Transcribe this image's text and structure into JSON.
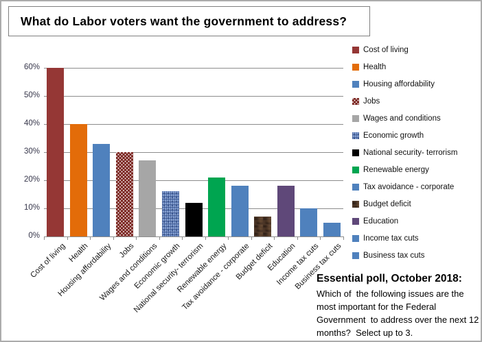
{
  "title": "What do Labor voters want the government to address?",
  "chart_data": {
    "type": "bar",
    "title": "What do Labor voters want the government to address?",
    "unit": "%",
    "categories": [
      "Cost of living",
      "Health",
      "Housing affordability",
      "Jobs",
      "Wages and conditions",
      "Economic growth",
      "National security- terrorism",
      "Renewable energy",
      "Tax avoidance - corporate",
      "Budget deficit",
      "Education",
      "Income tax cuts",
      "Business tax cuts"
    ],
    "values": [
      60,
      40,
      33,
      30,
      27,
      16,
      12,
      21,
      18,
      7,
      18,
      10,
      5
    ],
    "series_styles": [
      {
        "color": "#953735",
        "pattern": "solid"
      },
      {
        "color": "#E36C09",
        "pattern": "solid"
      },
      {
        "color": "#4F81BD",
        "pattern": "solid"
      },
      {
        "color": "#7E2B26",
        "pattern": "dots"
      },
      {
        "color": "#A6A6A6",
        "pattern": "solid"
      },
      {
        "color": "#7B97CB",
        "pattern": "denim"
      },
      {
        "color": "#000000",
        "pattern": "solid"
      },
      {
        "color": "#00A550",
        "pattern": "solid"
      },
      {
        "color": "#4F81BD",
        "pattern": "solid"
      },
      {
        "color": "#4C3627",
        "pattern": "walnut"
      },
      {
        "color": "#5F4879",
        "pattern": "solid"
      },
      {
        "color": "#4F81BD",
        "pattern": "solid"
      },
      {
        "color": "#4F81BD",
        "pattern": "solid"
      }
    ],
    "xlabel": "",
    "ylabel": "",
    "ylim": [
      0,
      60
    ],
    "ytick_step": 10,
    "yticks": [
      "0%",
      "10%",
      "20%",
      "30%",
      "40%",
      "50%",
      "60%"
    ],
    "grid": true,
    "legend_position": "right",
    "colors": {
      "gridline": "#8C8C8C",
      "axis_text": "#37374B",
      "label_text": "#1a1a1a"
    }
  },
  "source_note": {
    "heading": "Essential poll, October 2018:",
    "body": "Which of  the following issues are the most important for the Federal Government  to address over the next 12 months?  Select up to 3."
  }
}
